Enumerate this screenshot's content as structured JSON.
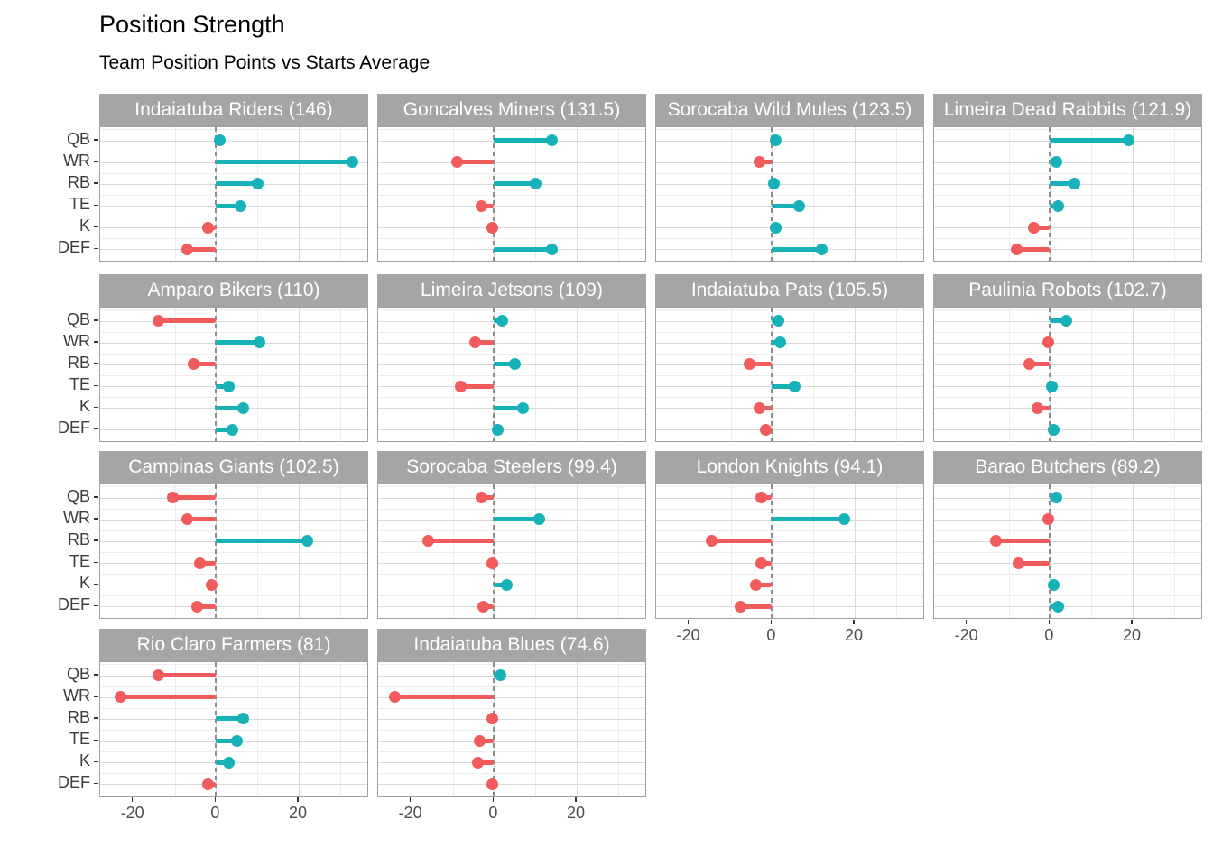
{
  "title": "Position Strength",
  "subtitle": "Team Position Points vs Starts Average",
  "colors": {
    "positive": "#17B2B7",
    "negative": "#F15B5B",
    "strip_bg": "#A5A5A5",
    "strip_text": "#FFFFFF",
    "grid_major": "#D9D9D9",
    "grid_minor": "#EDEDED",
    "panel_border": "#A0A0A0",
    "zero_line": "#8C8C8C",
    "axis_text": "#4D4D4D"
  },
  "chart_data": {
    "type": "bar",
    "style": "horizontal lollipop (segment from zero + dot), faceted small multiples, 4 columns",
    "title": "Position Strength",
    "subtitle": "Team Position Points vs Starts Average",
    "categories": [
      "QB",
      "WR",
      "RB",
      "TE",
      "K",
      "DEF"
    ],
    "x_ticks": [
      -20,
      0,
      20
    ],
    "x_minor_gridlines": [
      -10,
      10,
      30
    ],
    "x_range": [
      -28,
      37
    ],
    "grid": true,
    "legend": "none",
    "zero_reference_line": "gray dashed vertical at 0",
    "color_rule": "positive values teal, negative values red",
    "facets": [
      {
        "team": "Indaiatuba Riders",
        "total": "146",
        "label": "Indaiatuba Riders (146)",
        "values": [
          1,
          33,
          10,
          6,
          -2,
          -7
        ]
      },
      {
        "team": "Goncalves Miners",
        "total": "131.5",
        "label": "Goncalves Miners (131.5)",
        "values": [
          14,
          -9,
          10,
          -3,
          -0.5,
          14
        ]
      },
      {
        "team": "Sorocaba Wild Mules",
        "total": "123.5",
        "label": "Sorocaba Wild Mules (123.5)",
        "values": [
          1,
          -3,
          0.5,
          6.5,
          1,
          12
        ]
      },
      {
        "team": "Limeira Dead Rabbits",
        "total": "121.9",
        "label": "Limeira Dead Rabbits (121.9)",
        "values": [
          19,
          1.5,
          6,
          2,
          -4,
          -8
        ]
      },
      {
        "team": "Amparo Bikers",
        "total": "110",
        "label": "Amparo Bikers (110)",
        "values": [
          -14,
          10.5,
          -5.5,
          3,
          6.5,
          4
        ]
      },
      {
        "team": "Limeira Jetsons",
        "total": "109",
        "label": "Limeira Jetsons (109)",
        "values": [
          2,
          -4.5,
          5,
          -8,
          7,
          1
        ]
      },
      {
        "team": "Indaiatuba Pats",
        "total": "105.5",
        "label": "Indaiatuba Pats (105.5)",
        "values": [
          1.5,
          2,
          -5.5,
          5.5,
          -3,
          -1.5
        ]
      },
      {
        "team": "Paulinia Robots",
        "total": "102.7",
        "label": "Paulinia Robots (102.7)",
        "values": [
          4,
          -0.5,
          -5,
          0.5,
          -3,
          1
        ]
      },
      {
        "team": "Campinas Giants",
        "total": "102.5",
        "label": "Campinas Giants (102.5)",
        "values": [
          -10.5,
          -7,
          22,
          -4,
          -1,
          -4.5
        ]
      },
      {
        "team": "Sorocaba Steelers",
        "total": "99.4",
        "label": "Sorocaba Steelers (99.4)",
        "values": [
          -3,
          11,
          -16,
          -0.5,
          3,
          -2.5
        ]
      },
      {
        "team": "London Knights",
        "total": "94.1",
        "label": "London Knights (94.1)",
        "values": [
          -2.5,
          17.5,
          -14.5,
          -2.5,
          -4,
          -7.5
        ]
      },
      {
        "team": "Barao Butchers",
        "total": "89.2",
        "label": "Barao Butchers (89.2)",
        "values": [
          1.5,
          -0.5,
          -13,
          -7.5,
          1,
          2
        ]
      },
      {
        "team": "Rio Claro Farmers",
        "total": "81",
        "label": "Rio Claro Farmers (81)",
        "values": [
          -14,
          -23,
          6.5,
          5,
          3,
          -2
        ]
      },
      {
        "team": "Indaiatuba Blues",
        "total": "74.6",
        "label": "Indaiatuba Blues (74.6)",
        "values": [
          1.5,
          -24,
          -0.5,
          -3.5,
          -4,
          -0.5
        ]
      }
    ]
  }
}
